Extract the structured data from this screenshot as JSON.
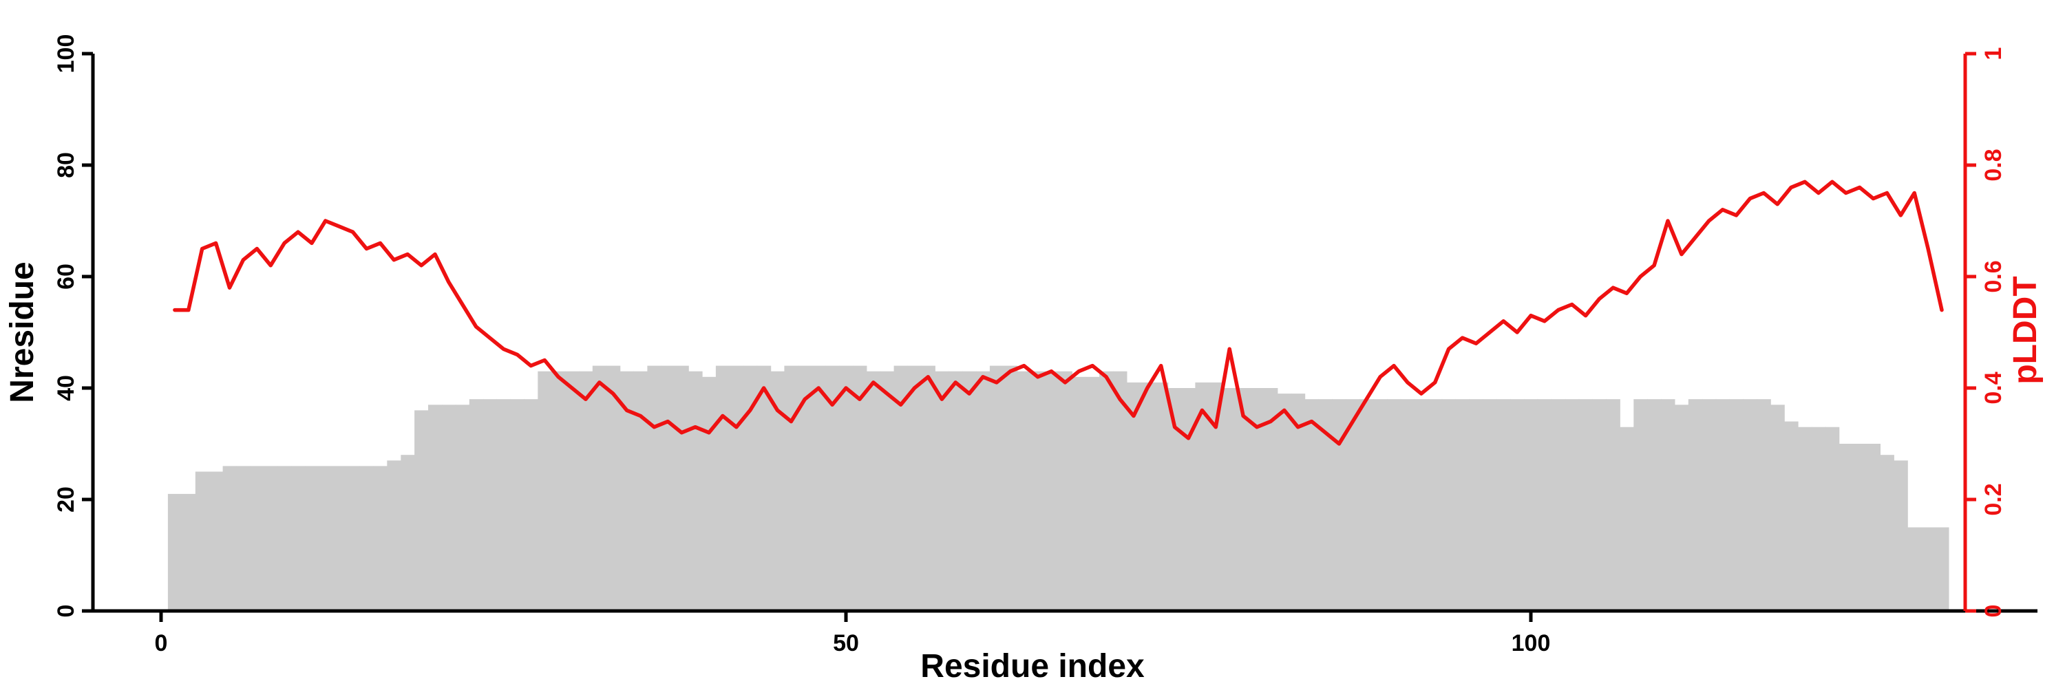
{
  "figure": {
    "background": "#ffffff"
  },
  "chart_data": {
    "type": "combo",
    "description": "Gray bars show number of residues (Nresidue, left axis 0-100); red line shows pLDDT per residue (right axis 0-1).",
    "x_start": 1,
    "x_step": 1,
    "x_axis": {
      "label": "Residue index",
      "ticks": [
        0,
        50,
        100
      ],
      "tick_labels": [
        "0",
        "50",
        "100"
      ]
    },
    "y_left": {
      "label": "Nresidue",
      "range": [
        0,
        100
      ],
      "ticks": [
        0,
        20,
        40,
        60,
        80,
        100
      ],
      "tick_labels": [
        "0",
        "20",
        "40",
        "60",
        "80",
        "100"
      ],
      "color": "#000000"
    },
    "y_right": {
      "label": "pLDDT",
      "range": [
        0,
        1
      ],
      "ticks": [
        0,
        0.2,
        0.4,
        0.6,
        0.8,
        1
      ],
      "tick_labels": [
        "0",
        "0.2",
        "0.4",
        "0.6",
        "0.8",
        "1"
      ],
      "color": "#ee1111"
    },
    "grid": false,
    "legend": "none",
    "series": [
      {
        "name": "Nresidue",
        "type": "bar",
        "axis": "left",
        "color": "#cccccc",
        "values": [
          21,
          21,
          25,
          25,
          26,
          26,
          26,
          26,
          26,
          26,
          26,
          26,
          26,
          26,
          26,
          26,
          27,
          28,
          36,
          37,
          37,
          37,
          38,
          38,
          38,
          38,
          38,
          43,
          43,
          43,
          43,
          44,
          44,
          43,
          43,
          44,
          44,
          44,
          43,
          42,
          44,
          44,
          44,
          44,
          43,
          44,
          44,
          44,
          44,
          44,
          44,
          43,
          43,
          44,
          44,
          44,
          43,
          43,
          43,
          43,
          44,
          44,
          43,
          43,
          43,
          43,
          42,
          42,
          43,
          43,
          41,
          41,
          41,
          40,
          40,
          41,
          41,
          40,
          40,
          40,
          40,
          39,
          39,
          38,
          38,
          38,
          38,
          38,
          38,
          38,
          38,
          38,
          38,
          38,
          38,
          38,
          38,
          38,
          38,
          38,
          38,
          38,
          38,
          38,
          38,
          38,
          33,
          38,
          38,
          38,
          37,
          38,
          38,
          38,
          38,
          38,
          38,
          37,
          34,
          33,
          33,
          33,
          30,
          30,
          30,
          28,
          27,
          15,
          15,
          15
        ]
      },
      {
        "name": "pLDDT",
        "type": "line",
        "axis": "right",
        "color": "#ee1111",
        "values": [
          0.54,
          0.54,
          0.65,
          0.66,
          0.58,
          0.63,
          0.65,
          0.62,
          0.66,
          0.68,
          0.66,
          0.7,
          0.69,
          0.68,
          0.65,
          0.66,
          0.63,
          0.64,
          0.62,
          0.64,
          0.59,
          0.55,
          0.51,
          0.49,
          0.47,
          0.46,
          0.44,
          0.45,
          0.42,
          0.4,
          0.38,
          0.41,
          0.39,
          0.36,
          0.35,
          0.33,
          0.34,
          0.32,
          0.33,
          0.32,
          0.35,
          0.33,
          0.36,
          0.4,
          0.36,
          0.34,
          0.38,
          0.4,
          0.37,
          0.4,
          0.38,
          0.41,
          0.39,
          0.37,
          0.4,
          0.42,
          0.38,
          0.41,
          0.39,
          0.42,
          0.41,
          0.43,
          0.44,
          0.42,
          0.43,
          0.41,
          0.43,
          0.44,
          0.42,
          0.38,
          0.35,
          0.4,
          0.44,
          0.33,
          0.31,
          0.36,
          0.33,
          0.47,
          0.35,
          0.33,
          0.34,
          0.36,
          0.33,
          0.34,
          0.32,
          0.3,
          0.34,
          0.38,
          0.42,
          0.44,
          0.41,
          0.39,
          0.41,
          0.47,
          0.49,
          0.48,
          0.5,
          0.52,
          0.5,
          0.53,
          0.52,
          0.54,
          0.55,
          0.53,
          0.56,
          0.58,
          0.57,
          0.6,
          0.62,
          0.7,
          0.64,
          0.67,
          0.7,
          0.72,
          0.71,
          0.74,
          0.75,
          0.73,
          0.76,
          0.77,
          0.75,
          0.77,
          0.75,
          0.76,
          0.74,
          0.75,
          0.71,
          0.75,
          0.65,
          0.54
        ]
      }
    ]
  }
}
